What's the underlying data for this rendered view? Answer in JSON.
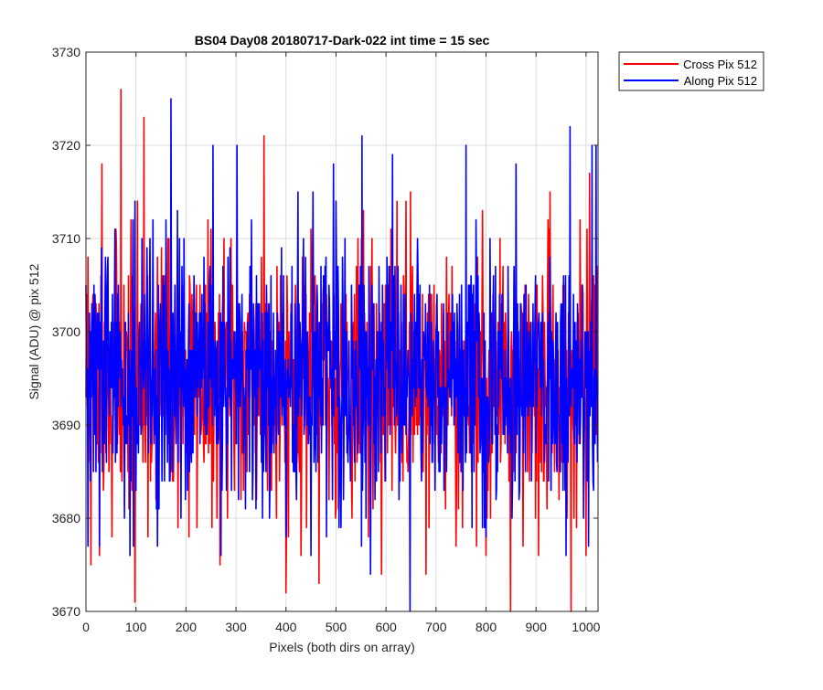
{
  "chart_data": {
    "type": "line",
    "title": "BS04 Day08 20180717-Dark-022 int time = 15 sec",
    "xlabel": "Pixels (both dirs on array)",
    "ylabel": "Signal (ADU) @ pix 512",
    "xlim": [
      0,
      1024
    ],
    "ylim": [
      3670,
      3730
    ],
    "xticks": [
      0,
      100,
      200,
      300,
      400,
      500,
      600,
      700,
      800,
      900,
      1000
    ],
    "yticks": [
      3670,
      3680,
      3690,
      3700,
      3710,
      3720,
      3730
    ],
    "grid": true,
    "legend_position": "outside-top-right",
    "series": [
      {
        "name": "Cross Pix 512",
        "color": "#ff0000",
        "noise": {
          "n_points": 1024,
          "mean": 3695,
          "std": 7,
          "seed": 11
        },
        "peaks": [
          [
            4,
            3708
          ],
          [
            10,
            3675
          ],
          [
            27,
            3676
          ],
          [
            32,
            3718
          ],
          [
            52,
            3678
          ],
          [
            70,
            3726
          ],
          [
            98,
            3671
          ],
          [
            116,
            3723
          ],
          [
            140,
            3682
          ],
          [
            206,
            3678
          ],
          [
            262,
            3680
          ],
          [
            290,
            3710
          ],
          [
            356,
            3721
          ],
          [
            400,
            3672
          ],
          [
            466,
            3673
          ],
          [
            610,
            3711
          ],
          [
            640,
            3714
          ],
          [
            680,
            3674
          ],
          [
            740,
            3677
          ],
          [
            800,
            3676
          ],
          [
            849,
            3670
          ],
          [
            905,
            3676
          ],
          [
            970,
            3670
          ],
          [
            1000,
            3676
          ]
        ]
      },
      {
        "name": "Along Pix 512",
        "color": "#0000ff",
        "noise": {
          "n_points": 1024,
          "mean": 3695,
          "std": 7,
          "seed": 29
        },
        "peaks": [
          [
            4,
            3677
          ],
          [
            20,
            3685
          ],
          [
            44,
            3708
          ],
          [
            88,
            3676
          ],
          [
            128,
            3710
          ],
          [
            170,
            3725
          ],
          [
            190,
            3680
          ],
          [
            254,
            3720
          ],
          [
            270,
            3676
          ],
          [
            302,
            3720
          ],
          [
            340,
            3681
          ],
          [
            400,
            3678
          ],
          [
            454,
            3715
          ],
          [
            500,
            3714
          ],
          [
            552,
            3721
          ],
          [
            560,
            3680
          ],
          [
            648,
            3670
          ],
          [
            760,
            3720
          ],
          [
            800,
            3678
          ],
          [
            860,
            3718
          ],
          [
            960,
            3676
          ],
          [
            968,
            3722
          ],
          [
            1005,
            3677
          ],
          [
            1012,
            3720
          ],
          [
            1020,
            3720
          ]
        ]
      }
    ]
  }
}
